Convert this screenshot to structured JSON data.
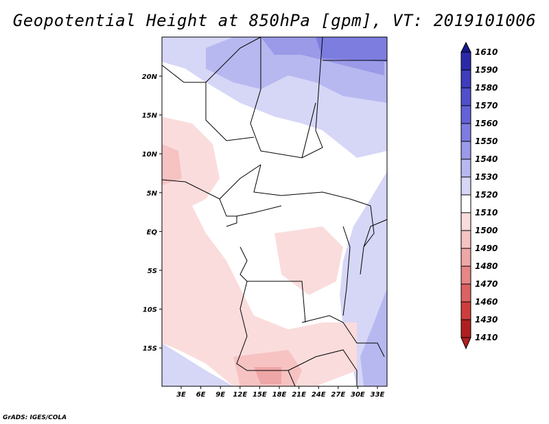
{
  "title": "Geopotential Height at 850hPa [gpm], VT: 2019101006",
  "credit": "GrADS: IGES/COLA",
  "map": {
    "lon_ticks": [
      "3E",
      "6E",
      "9E",
      "12E",
      "15E",
      "18E",
      "21E",
      "24E",
      "27E",
      "30E",
      "33E"
    ],
    "lat_ticks": [
      "20N",
      "15N",
      "10N",
      "5N",
      "EQ",
      "5S",
      "10S",
      "15S"
    ]
  },
  "colorbar": {
    "levels": [
      "1610",
      "1590",
      "1580",
      "1570",
      "1560",
      "1550",
      "1540",
      "1530",
      "1520",
      "1510",
      "1500",
      "1490",
      "1480",
      "1470",
      "1460",
      "1430",
      "1410"
    ],
    "colors": [
      "#17178f",
      "#2a2aa8",
      "#3d3dbd",
      "#5050cc",
      "#6363d8",
      "#7d7de0",
      "#9a9ae8",
      "#b8b8f0",
      "#d6d6f7",
      "#ffffff",
      "#fbdcdc",
      "#f6c2c2",
      "#efa6a6",
      "#e68686",
      "#dc6262",
      "#cf3d3d",
      "#b01f1f"
    ]
  }
}
